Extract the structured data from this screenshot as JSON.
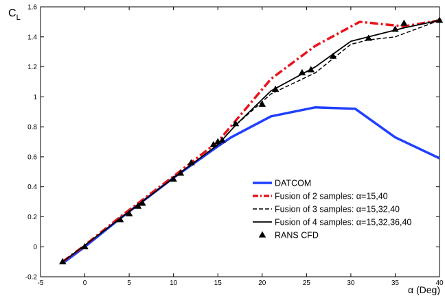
{
  "chart_data": {
    "type": "line",
    "title": "",
    "xlabel": "α (Deg)",
    "ylabel_main": "C",
    "ylabel_sub": "L",
    "xlim": [
      -5,
      40
    ],
    "ylim": [
      -0.2,
      1.6
    ],
    "xticks": [
      -5,
      0,
      5,
      10,
      15,
      20,
      25,
      30,
      35,
      40
    ],
    "yticks": [
      -0.2,
      0,
      0.2,
      0.4,
      0.6,
      0.8,
      1,
      1.2,
      1.4,
      1.6
    ],
    "grid": false,
    "legend_position": "lower-right",
    "series": [
      {
        "name": "DATCOM",
        "color": "#1f3fff",
        "style": "solid-thick",
        "x": [
          -2.5,
          0,
          4,
          10,
          15,
          16.5,
          21,
          26,
          30.5,
          35,
          40
        ],
        "y": [
          -0.11,
          0.0,
          0.19,
          0.46,
          0.67,
          0.73,
          0.87,
          0.93,
          0.92,
          0.73,
          0.59
        ]
      },
      {
        "name": "Fusion of 2 samples: α=15,40",
        "color": "#e8141b",
        "style": "dashdot-thick",
        "x": [
          -2.5,
          0,
          4,
          10,
          15,
          17,
          21,
          26,
          31,
          36,
          40
        ],
        "y": [
          -0.1,
          0.01,
          0.2,
          0.47,
          0.7,
          0.84,
          1.12,
          1.34,
          1.5,
          1.47,
          1.51
        ]
      },
      {
        "name": "Fusion of 3 samples: α=15,32,40",
        "color": "#000000",
        "style": "dashed",
        "x": [
          -2.5,
          0,
          4,
          10,
          15,
          17,
          21,
          26,
          30,
          32,
          35,
          40
        ],
        "y": [
          -0.1,
          0.01,
          0.19,
          0.46,
          0.68,
          0.81,
          1.02,
          1.16,
          1.35,
          1.38,
          1.4,
          1.51
        ]
      },
      {
        "name": "Fusion of 4 samples: α=15,32,36,40",
        "color": "#000000",
        "style": "solid",
        "x": [
          -2.5,
          0,
          4,
          10,
          15,
          17,
          21,
          26,
          30,
          32,
          36,
          40
        ],
        "y": [
          -0.1,
          0.01,
          0.19,
          0.46,
          0.68,
          0.81,
          1.04,
          1.2,
          1.37,
          1.4,
          1.46,
          1.51
        ]
      },
      {
        "name": "RANS CFD",
        "color": "#000000",
        "style": "markers-triangle",
        "x": [
          -2.5,
          0,
          4,
          5,
          6,
          6.5,
          10,
          10.8,
          12,
          14.5,
          15,
          15.5,
          17,
          20,
          21.5,
          24.5,
          25.5,
          28,
          32,
          35,
          36,
          40
        ],
        "y": [
          -0.1,
          0.0,
          0.18,
          0.22,
          0.27,
          0.29,
          0.45,
          0.49,
          0.56,
          0.68,
          0.7,
          0.71,
          0.82,
          0.95,
          1.05,
          1.16,
          1.18,
          1.27,
          1.39,
          1.45,
          1.49,
          1.51
        ]
      }
    ]
  }
}
